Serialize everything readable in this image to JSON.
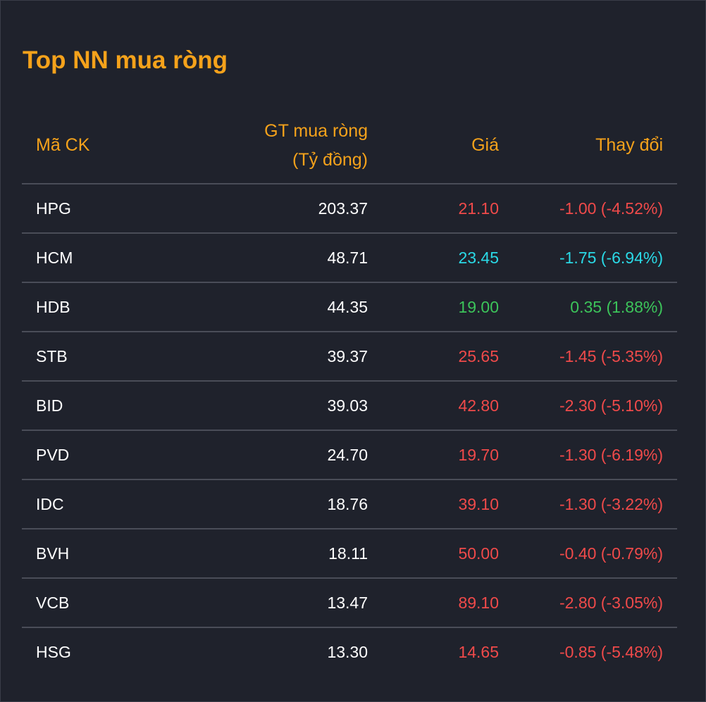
{
  "widget": {
    "title": "Top NN mua ròng"
  },
  "table": {
    "headers": {
      "code": "Mã CK",
      "value_line1": "GT mua ròng",
      "value_line2": "(Tỷ đồng)",
      "price": "Giá",
      "change": "Thay đổi"
    },
    "rows": [
      {
        "code": "HPG",
        "value": "203.37",
        "price": "21.10",
        "change": "-1.00 (-4.52%)",
        "color": "#f04a4a"
      },
      {
        "code": "HCM",
        "value": "48.71",
        "price": "23.45",
        "change": "-1.75 (-6.94%)",
        "color": "#2ad9e6"
      },
      {
        "code": "HDB",
        "value": "44.35",
        "price": "19.00",
        "change": "0.35 (1.88%)",
        "color": "#3cc45a"
      },
      {
        "code": "STB",
        "value": "39.37",
        "price": "25.65",
        "change": "-1.45 (-5.35%)",
        "color": "#f04a4a"
      },
      {
        "code": "BID",
        "value": "39.03",
        "price": "42.80",
        "change": "-2.30 (-5.10%)",
        "color": "#f04a4a"
      },
      {
        "code": "PVD",
        "value": "24.70",
        "price": "19.70",
        "change": "-1.30 (-6.19%)",
        "color": "#f04a4a"
      },
      {
        "code": "IDC",
        "value": "18.76",
        "price": "39.10",
        "change": "-1.30 (-3.22%)",
        "color": "#f04a4a"
      },
      {
        "code": "BVH",
        "value": "18.11",
        "price": "50.00",
        "change": "-0.40 (-0.79%)",
        "color": "#f04a4a"
      },
      {
        "code": "VCB",
        "value": "13.47",
        "price": "89.10",
        "change": "-2.80 (-3.05%)",
        "color": "#f04a4a"
      },
      {
        "code": "HSG",
        "value": "13.30",
        "price": "14.65",
        "change": "-0.85 (-5.48%)",
        "color": "#f04a4a"
      }
    ]
  },
  "colors": {
    "accent": "#f5a21b",
    "down": "#f04a4a",
    "floor": "#2ad9e6",
    "up": "#3cc45a",
    "background": "#1f222c"
  }
}
